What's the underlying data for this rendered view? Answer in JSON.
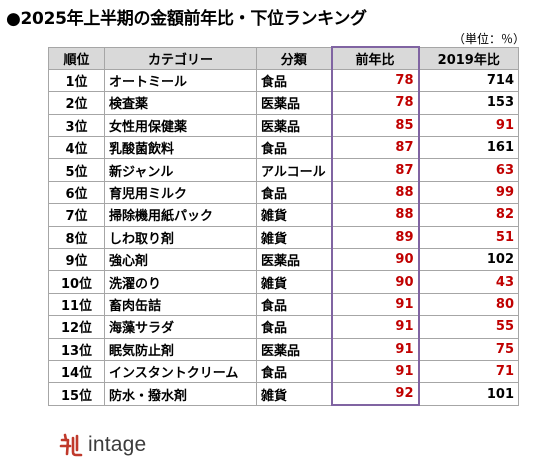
{
  "title": "●2025年上半期の金額前年比・下位ランキング",
  "unit": "（単位：％）",
  "columns": {
    "rank": "順位",
    "category": "カテゴリー",
    "type": "分類",
    "yoy": "前年比",
    "vs2019": "2019年比"
  },
  "rows": [
    {
      "rank": "1位",
      "category": "オートミール",
      "type": "食品",
      "yoy": "78",
      "vs2019": "714",
      "vs2019_color": "#000000"
    },
    {
      "rank": "2位",
      "category": "検査薬",
      "type": "医薬品",
      "yoy": "78",
      "vs2019": "153",
      "vs2019_color": "#000000"
    },
    {
      "rank": "3位",
      "category": "女性用保健薬",
      "type": "医薬品",
      "yoy": "85",
      "vs2019": "91",
      "vs2019_color": "#c00000"
    },
    {
      "rank": "4位",
      "category": "乳酸菌飲料",
      "type": "食品",
      "yoy": "87",
      "vs2019": "161",
      "vs2019_color": "#000000"
    },
    {
      "rank": "5位",
      "category": "新ジャンル",
      "type": "アルコール",
      "yoy": "87",
      "vs2019": "63",
      "vs2019_color": "#c00000"
    },
    {
      "rank": "6位",
      "category": "育児用ミルク",
      "type": "食品",
      "yoy": "88",
      "vs2019": "99",
      "vs2019_color": "#c00000"
    },
    {
      "rank": "7位",
      "category": "掃除機用紙パック",
      "type": "雑貨",
      "yoy": "88",
      "vs2019": "82",
      "vs2019_color": "#c00000"
    },
    {
      "rank": "8位",
      "category": "しわ取り剤",
      "type": "雑貨",
      "yoy": "89",
      "vs2019": "51",
      "vs2019_color": "#c00000"
    },
    {
      "rank": "9位",
      "category": "強心剤",
      "type": "医薬品",
      "yoy": "90",
      "vs2019": "102",
      "vs2019_color": "#000000"
    },
    {
      "rank": "10位",
      "category": "洗濯のり",
      "type": "雑貨",
      "yoy": "90",
      "vs2019": "43",
      "vs2019_color": "#c00000"
    },
    {
      "rank": "11位",
      "category": "畜肉缶詰",
      "type": "食品",
      "yoy": "91",
      "vs2019": "80",
      "vs2019_color": "#c00000"
    },
    {
      "rank": "12位",
      "category": "海藻サラダ",
      "type": "食品",
      "yoy": "91",
      "vs2019": "55",
      "vs2019_color": "#c00000"
    },
    {
      "rank": "13位",
      "category": "眠気防止剤",
      "type": "医薬品",
      "yoy": "91",
      "vs2019": "75",
      "vs2019_color": "#c00000"
    },
    {
      "rank": "14位",
      "category": "インスタントクリーム",
      "type": "食品",
      "yoy": "91",
      "vs2019": "71",
      "vs2019_color": "#c00000"
    },
    {
      "rank": "15位",
      "category": "防水・撥水剤",
      "type": "雑貨",
      "yoy": "92",
      "vs2019": "101",
      "vs2019_color": "#000000"
    }
  ],
  "colors": {
    "header_bg": "#d9d9d9",
    "decline_red": "#c00000",
    "highlight_purple": "#8064a2",
    "logo_red": "#c0392b"
  },
  "logo": {
    "text": "intage",
    "icon": "intage-logo-icon"
  }
}
